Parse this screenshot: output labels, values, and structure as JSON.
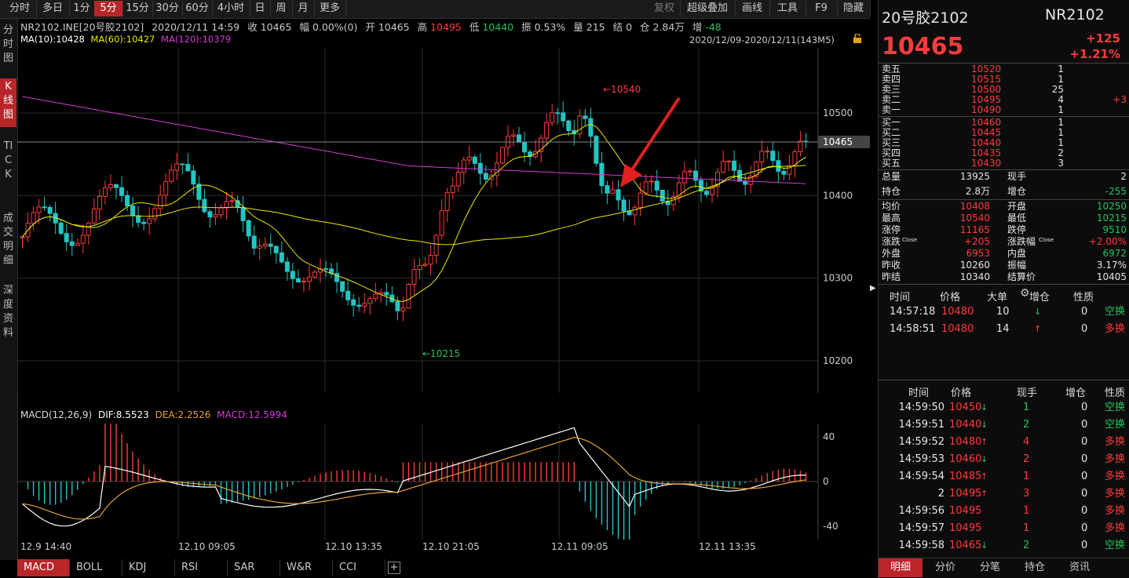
{
  "toolbar": {
    "periods": [
      "分时",
      "多日",
      "1分",
      "5分",
      "15分",
      "30分",
      "60分",
      "4小时",
      "日",
      "周",
      "月",
      "更多"
    ],
    "active_period": "5分",
    "right_tools": [
      "复权",
      "超级叠加",
      "画线",
      "工具",
      "F9",
      "隐藏"
    ]
  },
  "left_tabs": [
    "分时图",
    "K线图",
    "TICK",
    "成交明细",
    "深度资料"
  ],
  "info": {
    "code": "NR2102.INE[20号胶2102]",
    "datetime": "2020/12/11 14:59",
    "close": "收 10465",
    "change": "幅 0.00%(0)",
    "open": "开 10465",
    "high_label": "高",
    "high": "10495",
    "low_label": "低",
    "low": "10440",
    "amplitude": "振 0.53%",
    "volume": "量 215",
    "settle": "结 0",
    "oi": "仓 2.84万",
    "oi_change_label": "增",
    "oi_change": "-48"
  },
  "ma": {
    "ma10": "MA(10):10428",
    "ma60": "MA(60):10427",
    "ma120": "MA(120):10379"
  },
  "date_range": "2020/12/09-2020/12/11(143M5)",
  "kline": {
    "y_ticks": [
      "10500",
      "10400",
      "10300",
      "10200"
    ],
    "current_price_tag": "10465",
    "high_mark": "10540",
    "low_mark": "10215"
  },
  "macd": {
    "label": "MACD(12,26,9)",
    "dif": "DIF:8.5523",
    "dea": "DEA:2.2526",
    "macd": "MACD:12.5994",
    "y_ticks": [
      "40",
      "0",
      "-40"
    ]
  },
  "x_axis": [
    "12.9 14:40",
    "12.10 09:05",
    "12.10 13:35",
    "12.10 21:05",
    "12.11 09:05",
    "12.11 13:35"
  ],
  "indicator_tabs": [
    "MACD",
    "BOLL",
    "KDJ",
    "RSI",
    "SAR",
    "W&R",
    "CCI"
  ],
  "colors": {
    "up": "#ff3b3b",
    "down": "#22c5c5",
    "ma10": "#ffffff",
    "ma60": "#e8e800",
    "ma120": "#d53ad5",
    "accent": "#b8262a"
  },
  "quote": {
    "name": "20号胶2102",
    "code": "NR2102",
    "price": "10465",
    "change": "+125",
    "change_pct": "+1.21%",
    "asks": [
      {
        "label": "卖五",
        "price": "10520",
        "vol": "1",
        "chg": ""
      },
      {
        "label": "卖四",
        "price": "10515",
        "vol": "1",
        "chg": ""
      },
      {
        "label": "卖三",
        "price": "10500",
        "vol": "25",
        "chg": ""
      },
      {
        "label": "卖二",
        "price": "10495",
        "vol": "4",
        "chg": "+3"
      },
      {
        "label": "卖一",
        "price": "10490",
        "vol": "1",
        "chg": ""
      }
    ],
    "bids": [
      {
        "label": "买一",
        "price": "10460",
        "vol": "1",
        "chg": ""
      },
      {
        "label": "买二",
        "price": "10445",
        "vol": "1",
        "chg": ""
      },
      {
        "label": "买三",
        "price": "10440",
        "vol": "1",
        "chg": ""
      },
      {
        "label": "买四",
        "price": "10435",
        "vol": "2",
        "chg": ""
      },
      {
        "label": "买五",
        "price": "10430",
        "vol": "3",
        "chg": ""
      }
    ],
    "stats1": [
      {
        "l": "总量",
        "v": "13925",
        "l2": "现手",
        "v2": "2",
        "c": "white",
        "c2": "white"
      },
      {
        "l": "持仓",
        "v": "2.8万",
        "l2": "增仓",
        "v2": "-255",
        "c": "white",
        "c2": "green"
      }
    ],
    "stats2": [
      {
        "l": "均价",
        "v": "10408",
        "l2": "开盘",
        "v2": "10250",
        "c": "red",
        "c2": "green"
      },
      {
        "l": "最高",
        "v": "10540",
        "l2": "最低",
        "v2": "10215",
        "c": "red",
        "c2": "green"
      },
      {
        "l": "涨停",
        "v": "11165",
        "l2": "跌停",
        "v2": "9510",
        "c": "red",
        "c2": "green"
      },
      {
        "l": "涨跌",
        "v": "+205",
        "l2": "涨跌幅",
        "v2": "+2.00%",
        "c": "red",
        "c2": "red",
        "sub": "Close",
        "sub2": "Close"
      },
      {
        "l": "外盘",
        "v": "6953",
        "l2": "内盘",
        "v2": "6972",
        "c": "red",
        "c2": "green"
      },
      {
        "l": "昨收",
        "v": "10260",
        "l2": "振幅",
        "v2": "3.17%",
        "c": "white",
        "c2": "white"
      },
      {
        "l": "昨结",
        "v": "10340",
        "l2": "结算价",
        "v2": "10405",
        "c": "white",
        "c2": "white"
      }
    ]
  },
  "big_trades": {
    "headers": [
      "时间",
      "价格",
      "大单",
      "增仓",
      "性质"
    ],
    "rows": [
      {
        "time": "14:57:18",
        "price": "10480",
        "vol": "10",
        "dir": "down",
        "oi": "0",
        "nature": "空换",
        "nc": "green"
      },
      {
        "time": "14:58:51",
        "price": "10480",
        "vol": "14",
        "dir": "up",
        "oi": "0",
        "nature": "多换",
        "nc": "red"
      }
    ]
  },
  "ticks": {
    "headers": [
      "时间",
      "价格",
      "现手",
      "增仓",
      "性质"
    ],
    "rows": [
      {
        "time": "14:59:50",
        "price": "10450",
        "arrow": "down",
        "vol": "1",
        "vc": "green",
        "oi": "0",
        "nature": "空换",
        "nc": "green"
      },
      {
        "time": "14:59:51",
        "price": "10440",
        "arrow": "down",
        "vol": "2",
        "vc": "green",
        "oi": "0",
        "nature": "空换",
        "nc": "green"
      },
      {
        "time": "14:59:52",
        "price": "10480",
        "arrow": "up",
        "vol": "4",
        "vc": "red",
        "oi": "0",
        "nature": "多换",
        "nc": "red"
      },
      {
        "time": "14:59:53",
        "price": "10460",
        "arrow": "down",
        "vol": "2",
        "vc": "red",
        "oi": "0",
        "nature": "多换",
        "nc": "red"
      },
      {
        "time": "14:59:54",
        "price": "10485",
        "arrow": "up",
        "vol": "1",
        "vc": "red",
        "oi": "0",
        "nature": "多换",
        "nc": "red"
      },
      {
        "time": "2",
        "price": "10495",
        "arrow": "up",
        "vol": "3",
        "vc": "red",
        "oi": "0",
        "nature": "多换",
        "nc": "red"
      },
      {
        "time": "14:59:56",
        "price": "10495",
        "arrow": "",
        "vol": "1",
        "vc": "red",
        "oi": "0",
        "nature": "多换",
        "nc": "red"
      },
      {
        "time": "14:59:57",
        "price": "10495",
        "arrow": "",
        "vol": "1",
        "vc": "red",
        "oi": "0",
        "nature": "多换",
        "nc": "red"
      },
      {
        "time": "14:59:58",
        "price": "10465",
        "arrow": "down",
        "vol": "2",
        "vc": "green",
        "oi": "0",
        "nature": "空换",
        "nc": "green"
      }
    ]
  },
  "bottom_tabs": [
    "明细",
    "分价",
    "分笔",
    "持仓",
    "资讯"
  ]
}
